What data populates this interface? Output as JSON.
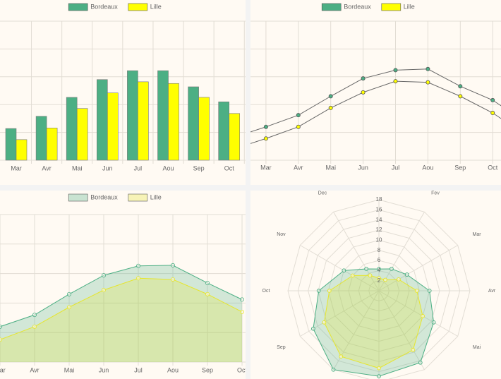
{
  "chart_data": [
    {
      "type": "bar",
      "categories": [
        "Mar",
        "Avr",
        "Mai",
        "Jun",
        "Jul",
        "Aou",
        "Sep",
        "Oct"
      ],
      "ylim": [
        0,
        25
      ],
      "grid": true,
      "legend": "top",
      "series": [
        {
          "name": "Bordeaux",
          "color": "#4caf84",
          "values": [
            5.7,
            7.9,
            11.3,
            14.5,
            16.1,
            16.1,
            13.2,
            10.5
          ]
        },
        {
          "name": "Lille",
          "color": "#ffff00",
          "values": [
            3.7,
            5.8,
            9.3,
            12.1,
            14.1,
            13.8,
            11.3,
            8.4
          ]
        }
      ]
    },
    {
      "type": "line",
      "categories": [
        null,
        "Mar",
        "Avr",
        "Mai",
        "Jun",
        "Jul",
        "Aou",
        "Sep",
        "Oct",
        null
      ],
      "ylim": [
        0,
        25
      ],
      "grid": true,
      "legend": "top",
      "series": [
        {
          "name": "Bordeaux",
          "color": "#4caf84",
          "values": [
            4.1,
            6.0,
            8.1,
            11.5,
            14.7,
            16.2,
            16.4,
            13.3,
            10.8,
            6.9
          ]
        },
        {
          "name": "Lille",
          "color": "#ffff00",
          "values": [
            2.0,
            3.9,
            6.0,
            9.4,
            12.2,
            14.2,
            14.0,
            11.5,
            8.5,
            4.6
          ]
        }
      ]
    },
    {
      "type": "area",
      "categories": [
        "Mar",
        "Avr",
        "Mai",
        "Jun",
        "Jul",
        "Aou",
        "Sep",
        "Oct"
      ],
      "ylim": [
        0,
        25
      ],
      "grid": true,
      "legend": "top",
      "series": [
        {
          "name": "Bordeaux",
          "color": "#4caf84",
          "values": [
            6.0,
            8.0,
            11.5,
            14.7,
            16.3,
            16.4,
            13.4,
            10.6
          ]
        },
        {
          "name": "Lille",
          "color": "#e6e62e",
          "values": [
            3.8,
            6.0,
            9.3,
            12.2,
            14.2,
            14.0,
            11.5,
            8.5
          ]
        }
      ]
    },
    {
      "type": "radar",
      "categories": [
        null,
        "Fev",
        "Mar",
        "Avr",
        "Mai",
        null,
        null,
        null,
        "Sep",
        "Oct",
        "Nov",
        "Dec"
      ],
      "rlim": [
        0,
        18
      ],
      "rticks": [
        2,
        4,
        6,
        8,
        10,
        12,
        14,
        16,
        18
      ],
      "grid": true,
      "series": [
        {
          "color": "#4caf84",
          "values": [
            4.3,
            5,
            6.4,
            10,
            12.5,
            16.4,
            16.9,
            18,
            15,
            11.9,
            8,
            5
          ]
        },
        {
          "color": "#e6e62e",
          "values": [
            2.5,
            2.5,
            4.5,
            7.5,
            10,
            13.5,
            15.3,
            15,
            12.5,
            9.8,
            6,
            3.5
          ]
        }
      ]
    }
  ]
}
